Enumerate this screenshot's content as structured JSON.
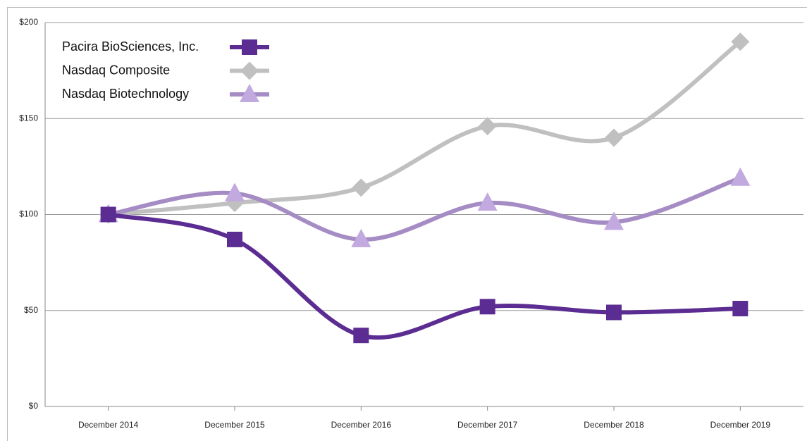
{
  "chart_data": {
    "type": "line",
    "categories": [
      "December 2014",
      "December 2015",
      "December 2016",
      "December 2017",
      "December 2018",
      "December 2019"
    ],
    "series": [
      {
        "name": "Pacira BioSciences, Inc.",
        "color": "#5b2c91",
        "marker": "square",
        "values": [
          100,
          87,
          37,
          52,
          49,
          51
        ]
      },
      {
        "name": "Nasdaq Composite",
        "color": "#c0c0c0",
        "marker": "diamond",
        "values": [
          100,
          106,
          114,
          146,
          140,
          190
        ]
      },
      {
        "name": "Nasdaq Biotechnology",
        "color": "#a68cc4",
        "marker": "triangle",
        "values": [
          100,
          111,
          87,
          106,
          96,
          119
        ]
      }
    ],
    "ylim": [
      0,
      200
    ],
    "yticks": [
      {
        "value": 0,
        "label": "$0"
      },
      {
        "value": 50,
        "label": "$50"
      },
      {
        "value": 100,
        "label": "$100"
      },
      {
        "value": 150,
        "label": "$150"
      },
      {
        "value": 200,
        "label": "$200"
      }
    ],
    "grid": true,
    "legend": "upper left"
  }
}
